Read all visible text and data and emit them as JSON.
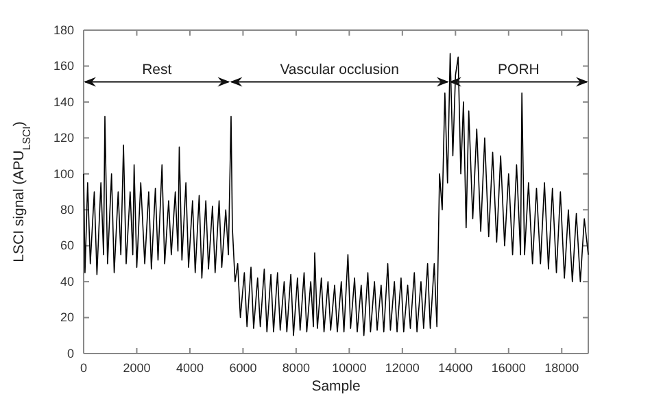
{
  "chart_data": {
    "type": "line",
    "xlabel": "Sample",
    "ylabel": "LSCI signal (APU$_{LSCI}$)",
    "xlim": [
      0,
      19000
    ],
    "xticks": [
      0,
      2000,
      4000,
      6000,
      8000,
      10000,
      12000,
      14000,
      16000,
      18000
    ],
    "ylim": [
      0,
      180
    ],
    "yticks": [
      0,
      20,
      40,
      60,
      80,
      100,
      120,
      140,
      160,
      180
    ],
    "grid": false,
    "marker": "none",
    "line_style": "solid",
    "annotations": [
      "Rest",
      "Vascular occlusion",
      "PORH"
    ],
    "series": [
      {
        "color": "#000000",
        "x": [
          0,
          50,
          150,
          250,
          400,
          500,
          650,
          750,
          800,
          900,
          1050,
          1150,
          1300,
          1400,
          1500,
          1600,
          1750,
          1850,
          1900,
          2000,
          2150,
          2300,
          2450,
          2550,
          2700,
          2800,
          2950,
          3050,
          3200,
          3300,
          3450,
          3550,
          3600,
          3700,
          3850,
          3950,
          4100,
          4200,
          4350,
          4450,
          4600,
          4700,
          4850,
          4950,
          5100,
          5200,
          5350,
          5450,
          5550,
          5600,
          5700,
          5800,
          5900,
          6050,
          6150,
          6300,
          6400,
          6550,
          6650,
          6800,
          6900,
          7050,
          7150,
          7300,
          7400,
          7550,
          7650,
          7800,
          7900,
          8050,
          8150,
          8300,
          8400,
          8550,
          8650,
          8700,
          8800,
          8950,
          9050,
          9200,
          9300,
          9450,
          9550,
          9700,
          9800,
          9950,
          10050,
          10200,
          10300,
          10450,
          10550,
          10700,
          10800,
          10950,
          11050,
          11200,
          11300,
          11450,
          11550,
          11700,
          11800,
          11950,
          12050,
          12200,
          12300,
          12450,
          12550,
          12700,
          12800,
          12950,
          13050,
          13200,
          13300,
          13400,
          13500,
          13600,
          13700,
          13800,
          13900,
          14000,
          14100,
          14200,
          14300,
          14400,
          14500,
          14650,
          14800,
          14950,
          15100,
          15250,
          15400,
          15550,
          15700,
          15850,
          16000,
          16150,
          16300,
          16450,
          16500,
          16600,
          16750,
          16900,
          17050,
          17200,
          17350,
          17500,
          17650,
          17800,
          17950,
          18100,
          18250,
          18400,
          18550,
          18700,
          18850,
          19000
        ],
        "values": [
          100,
          45,
          95,
          50,
          90,
          44,
          95,
          55,
          132,
          50,
          100,
          45,
          90,
          55,
          116,
          50,
          90,
          55,
          105,
          48,
          95,
          50,
          90,
          47,
          92,
          52,
          105,
          50,
          85,
          55,
          90,
          57,
          115,
          52,
          95,
          48,
          85,
          45,
          88,
          42,
          85,
          47,
          82,
          45,
          85,
          48,
          80,
          55,
          132,
          70,
          40,
          50,
          20,
          45,
          15,
          48,
          14,
          42,
          15,
          47,
          12,
          44,
          12,
          45,
          13,
          40,
          12,
          44,
          10,
          42,
          13,
          45,
          12,
          40,
          15,
          56,
          14,
          42,
          12,
          40,
          13,
          38,
          12,
          40,
          12,
          55,
          14,
          42,
          12,
          38,
          10,
          45,
          12,
          40,
          13,
          38,
          12,
          50,
          13,
          40,
          12,
          42,
          12,
          38,
          14,
          45,
          12,
          40,
          14,
          50,
          14,
          50,
          15,
          100,
          80,
          145,
          95,
          167,
          110,
          155,
          165,
          100,
          140,
          70,
          135,
          75,
          125,
          68,
          120,
          65,
          112,
          62,
          110,
          60,
          100,
          55,
          105,
          55,
          145,
          55,
          95,
          50,
          92,
          50,
          95,
          47,
          92,
          45,
          90,
          42,
          80,
          40,
          78,
          40,
          75,
          55
        ]
      }
    ]
  }
}
